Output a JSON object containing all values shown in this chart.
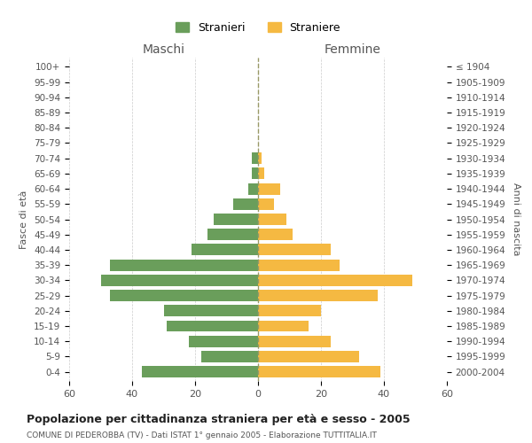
{
  "age_groups": [
    "0-4",
    "5-9",
    "10-14",
    "15-19",
    "20-24",
    "25-29",
    "30-34",
    "35-39",
    "40-44",
    "45-49",
    "50-54",
    "55-59",
    "60-64",
    "65-69",
    "70-74",
    "75-79",
    "80-84",
    "85-89",
    "90-94",
    "95-99",
    "100+"
  ],
  "birth_years": [
    "2000-2004",
    "1995-1999",
    "1990-1994",
    "1985-1989",
    "1980-1984",
    "1975-1979",
    "1970-1974",
    "1965-1969",
    "1960-1964",
    "1955-1959",
    "1950-1954",
    "1945-1949",
    "1940-1944",
    "1935-1939",
    "1930-1934",
    "1925-1929",
    "1920-1924",
    "1915-1919",
    "1910-1914",
    "1905-1909",
    "≤ 1904"
  ],
  "maschi": [
    37,
    18,
    22,
    29,
    30,
    47,
    50,
    47,
    21,
    16,
    14,
    8,
    3,
    2,
    2,
    0,
    0,
    0,
    0,
    0,
    0
  ],
  "femmine": [
    39,
    32,
    23,
    16,
    20,
    38,
    49,
    26,
    23,
    11,
    9,
    5,
    7,
    2,
    1,
    0,
    0,
    0,
    0,
    0,
    0
  ],
  "maschi_color": "#6a9e5b",
  "femmine_color": "#f5b942",
  "background_color": "#ffffff",
  "grid_color": "#cccccc",
  "title": "Popolazione per cittadinanza straniera per età e sesso - 2005",
  "subtitle": "COMUNE DI PEDEROBBA (TV) - Dati ISTAT 1° gennaio 2005 - Elaborazione TUTTITALIA.IT",
  "xlabel_left": "Maschi",
  "xlabel_right": "Femmine",
  "ylabel_left": "Fasce di età",
  "ylabel_right": "Anni di nascita",
  "legend_maschi": "Stranieri",
  "legend_femmine": "Straniere",
  "xlim": 60,
  "bar_height": 0.75
}
